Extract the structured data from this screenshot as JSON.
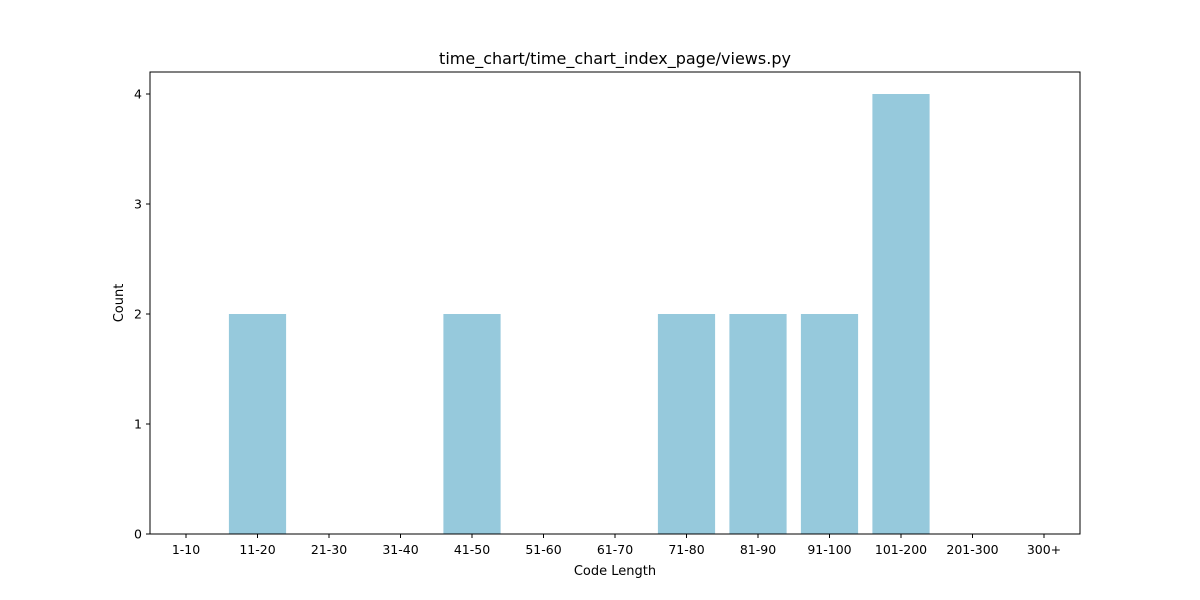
{
  "chart_data": {
    "type": "bar",
    "title": "time_chart/time_chart_index_page/views.py",
    "xlabel": "Code Length",
    "ylabel": "Count",
    "categories": [
      "1-10",
      "11-20",
      "21-30",
      "31-40",
      "41-50",
      "51-60",
      "61-70",
      "71-80",
      "81-90",
      "91-100",
      "101-200",
      "201-300",
      "300+"
    ],
    "values": [
      0,
      2,
      0,
      0,
      2,
      0,
      0,
      2,
      2,
      2,
      4,
      0,
      0
    ],
    "ylim": [
      0,
      4.2
    ],
    "yticks": [
      0,
      1,
      2,
      3,
      4
    ],
    "grid": false,
    "bar_color": "#96c9dc"
  }
}
